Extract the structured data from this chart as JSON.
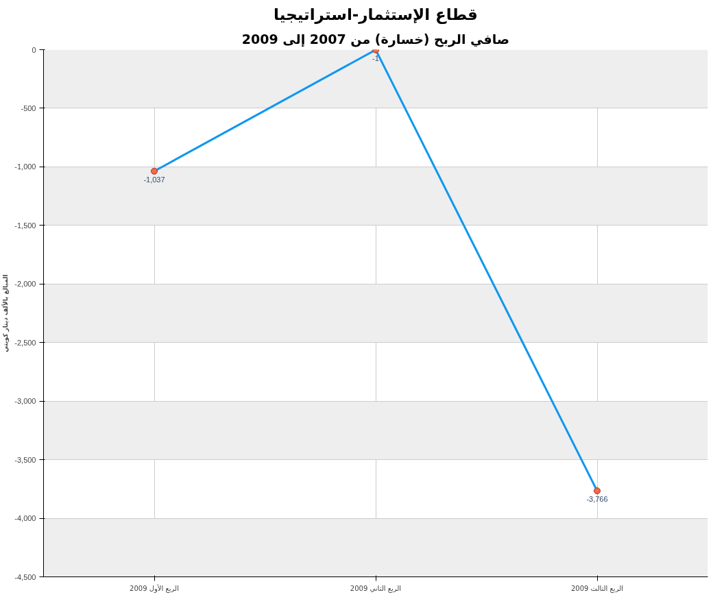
{
  "chart_data": {
    "type": "line",
    "title": "قطاع الإستثمار-استراتيجيا",
    "subtitle": "صافي الربح (خسارة) من 2007 إلى 2009",
    "ylabel": "المبالغ بالألف دينار كويتي",
    "categories": [
      "الربع الأول 2009",
      "الربع الثاني 2009",
      "الربع الثالث 2009"
    ],
    "series": [
      {
        "color": "#0f97f0",
        "values": [
          -1037,
          -1,
          -3766
        ],
        "value_labels": [
          "-1,037",
          "-1",
          "-3,766"
        ]
      }
    ],
    "ylim": [
      -4500,
      0
    ],
    "yticks": [
      0,
      -500,
      {
        "value": -1000,
        "label": "-1,000"
      },
      {
        "value": -1500,
        "label": "-1,500"
      },
      {
        "value": -2000,
        "label": "-2,000"
      },
      {
        "value": -2500,
        "label": "-2,500"
      },
      {
        "value": -3000,
        "label": "-3,000"
      },
      {
        "value": -3500,
        "label": "-3,500"
      },
      {
        "value": -4000,
        "label": "-4,000"
      },
      {
        "value": -4500,
        "label": "-4,500"
      }
    ],
    "grid": true,
    "marker": "circle",
    "line_style": "solid"
  }
}
